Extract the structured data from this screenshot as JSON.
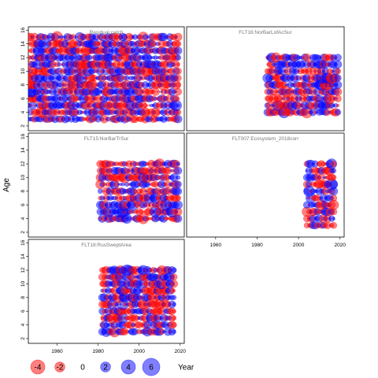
{
  "chart_data": {
    "type": "scatter",
    "ylabel": "Age",
    "xlabel": "Year",
    "x_ticks": [
      1960,
      1980,
      2000,
      2020
    ],
    "y_ticks": [
      2,
      4,
      6,
      8,
      10,
      12,
      14,
      16
    ],
    "xlim": [
      1946,
      2022
    ],
    "ylim": [
      1.3,
      16.5
    ],
    "colors": {
      "positive": "#0000ff",
      "negative": "#ff0000"
    },
    "panels": [
      {
        "title": "Residual catch",
        "years": [
          1946,
          2019
        ],
        "ages": [
          3,
          15
        ]
      },
      {
        "title": "FLT16:NorBarLofAcSur",
        "years": [
          1985,
          2019
        ],
        "ages": [
          4,
          12
        ]
      },
      {
        "title": "FLT15:NorBarTrSur",
        "years": [
          1981,
          2019
        ],
        "ages": [
          4,
          12
        ]
      },
      {
        "title": "FLT007:Ecosystem_2018corr",
        "years": [
          2004,
          2017
        ],
        "ages": [
          3,
          12
        ]
      },
      {
        "title": "FLT18:RusSweptArea",
        "years": [
          1982,
          2017
        ],
        "ages": [
          3,
          12
        ]
      }
    ],
    "legend": {
      "values": [
        -4,
        -2,
        0,
        2,
        4,
        6
      ],
      "labels": [
        "-4",
        "-2",
        "0",
        "2",
        "4",
        "6"
      ],
      "title": "Year"
    }
  }
}
